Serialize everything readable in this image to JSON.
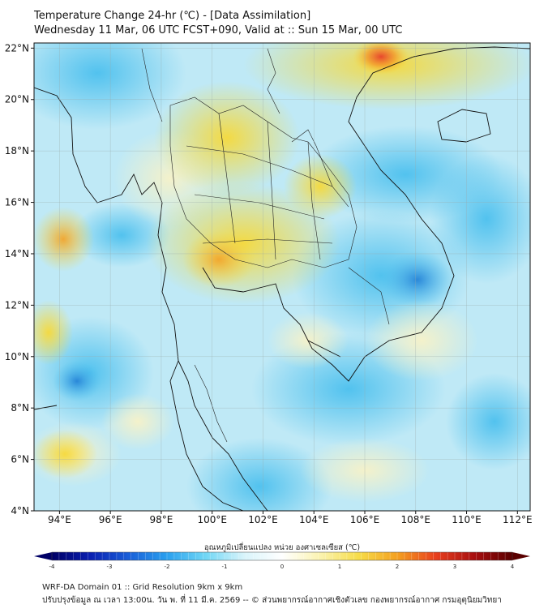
{
  "header": {
    "title": "Temperature Change 24-hr (℃) - [Data Assimilation]",
    "subtitle": "Wednesday 11 Mar, 06 UTC FCST+090, Valid at :: Sun 15 Mar, 00 UTC"
  },
  "map": {
    "lon_range": [
      93,
      112.5
    ],
    "lat_range": [
      4,
      22.2
    ],
    "lon_ticks": [
      "94°E",
      "96°E",
      "98°E",
      "100°E",
      "102°E",
      "104°E",
      "106°E",
      "108°E",
      "110°E",
      "112°E"
    ],
    "lat_ticks": [
      "22°N",
      "20°N",
      "18°N",
      "16°N",
      "14°N",
      "12°N",
      "10°N",
      "8°N",
      "6°N",
      "4°N"
    ],
    "grid": true,
    "warm_color": "#f3e04a",
    "hot_color": "#e8352a",
    "cool_color": "#4fc3ee",
    "cold_color": "#1e73c8"
  },
  "colorbar": {
    "label": "อุณหภูมิเปลี่ยนแปลง หน่วย องศาเซลเซียส (℃)",
    "range": [
      -4,
      4
    ],
    "ticks": [
      "-4",
      "-3",
      "-2",
      "-1",
      "0",
      "1",
      "2",
      "3",
      "4"
    ],
    "stops": [
      "#000066",
      "#0a1fb0",
      "#1a5fd8",
      "#2aa0ee",
      "#6fd6f5",
      "#d8f4fb",
      "#ffffff",
      "#fbf3b0",
      "#f6dc48",
      "#f4a020",
      "#e8401e",
      "#a80f10",
      "#5a0000"
    ]
  },
  "footer": {
    "line1": "WRF-DA Domain 01 :: Grid Resolution 9km x 9km",
    "line2": "ปรับปรุงข้อมูล ณ เวลา 13:00น. วัน พ. ที่ 11 มี.ค. 2569 -- © ส่วนพยากรณ์อากาศเชิงตัวเลข กองพยากรณ์อากาศ กรมอุตุนิยมวิทยา"
  }
}
